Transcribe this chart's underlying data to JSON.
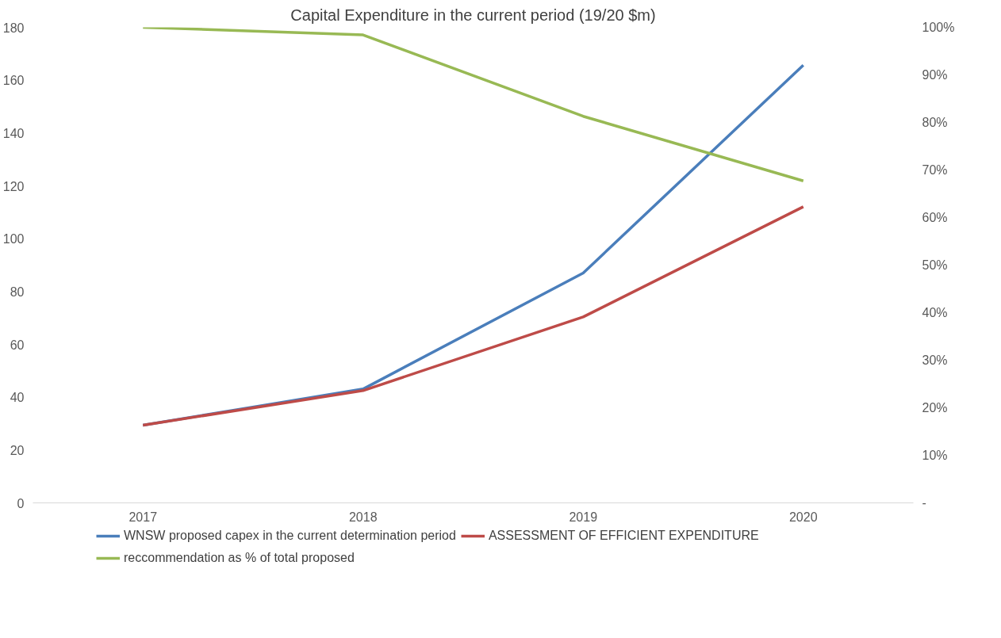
{
  "chart_data": {
    "type": "line",
    "title": "Capital Expenditure in the current period (19/20 $m)",
    "categories": [
      "2017",
      "2018",
      "2019",
      "2020"
    ],
    "series": [
      {
        "name": "WNSW proposed capex in the current determination period",
        "color": "#4a7ebb",
        "values": [
          29.4,
          43.1,
          87.0,
          165.7
        ]
      },
      {
        "name": "ASSESSMENT OF EFFICIENT EXPENDITURE",
        "color": "#be4b48",
        "values": [
          29.4,
          42.5,
          70.4,
          112.1
        ]
      },
      {
        "name": "reccommendation as % of total proposed",
        "color": "#98b954",
        "values": [
          100,
          98.4,
          81.3,
          67.7
        ],
        "axis": "y2"
      }
    ],
    "ylim": [
      0,
      180
    ],
    "yticks": [
      0,
      20,
      40,
      60,
      80,
      100,
      120,
      140,
      160,
      180
    ],
    "y2lim": [
      0,
      100
    ],
    "y2ticks": [
      {
        "value": 0,
        "label": "-"
      },
      {
        "value": 10,
        "label": "10%"
      },
      {
        "value": 20,
        "label": "20%"
      },
      {
        "value": 30,
        "label": "30%"
      },
      {
        "value": 40,
        "label": "40%"
      },
      {
        "value": 50,
        "label": "50%"
      },
      {
        "value": 60,
        "label": "60%"
      },
      {
        "value": 70,
        "label": "70%"
      },
      {
        "value": 80,
        "label": "80%"
      },
      {
        "value": 90,
        "label": "90%"
      },
      {
        "value": 100,
        "label": "100%"
      }
    ],
    "legend": "bottom",
    "line_style": "solid",
    "marker": "none"
  }
}
